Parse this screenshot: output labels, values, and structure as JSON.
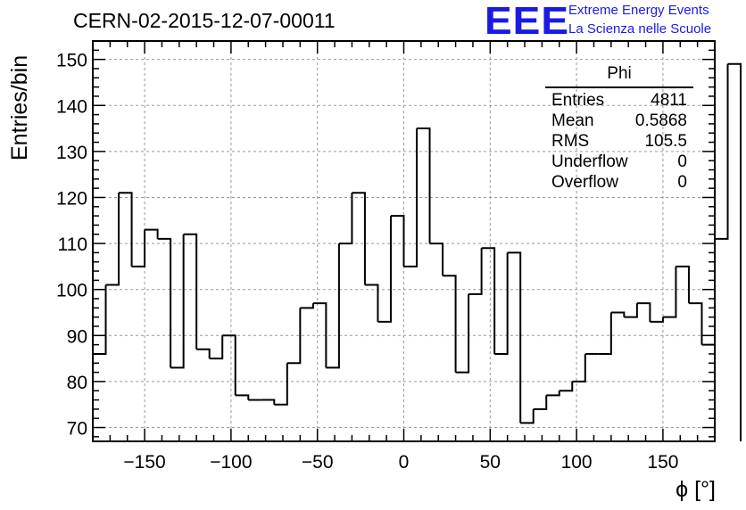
{
  "header": {
    "title": "CERN-02-2015-12-07-00011",
    "logo_text": "EEE",
    "logo_line1": "Extreme Energy Events",
    "logo_line2": "La Scienza nelle Scuole"
  },
  "stats": {
    "title": "Phi",
    "rows": [
      {
        "label": "Entries",
        "value": "4811"
      },
      {
        "label": "Mean",
        "value": "0.5868"
      },
      {
        "label": "RMS",
        "value": "105.5"
      },
      {
        "label": "Underflow",
        "value": "0"
      },
      {
        "label": "Overflow",
        "value": "0"
      }
    ]
  },
  "colors": {
    "logo": "#1a1ae6",
    "line": "#000000",
    "grid": "#999999"
  },
  "chart_data": {
    "type": "histogram",
    "xlabel": "ϕ [°]",
    "ylabel": "Entries/bin",
    "xlim": [
      -180,
      180
    ],
    "ylim": [
      67,
      154
    ],
    "grid": true,
    "bin_width": 7.5,
    "x_ticks": [
      -150,
      -100,
      -50,
      0,
      50,
      100,
      150
    ],
    "y_ticks": [
      70,
      80,
      90,
      100,
      110,
      120,
      130,
      140,
      150
    ],
    "bin_edges_start": -180,
    "values": [
      86,
      101,
      121,
      105,
      113,
      111,
      83,
      112,
      87,
      85,
      90,
      77,
      76,
      76,
      75,
      84,
      96,
      97,
      83,
      110,
      121,
      101,
      93,
      116,
      105,
      135,
      110,
      103,
      82,
      99,
      109,
      86,
      108,
      71,
      74,
      77,
      78,
      80,
      86,
      86,
      95,
      94,
      97,
      93,
      94,
      105,
      97,
      88,
      111,
      149
    ]
  }
}
